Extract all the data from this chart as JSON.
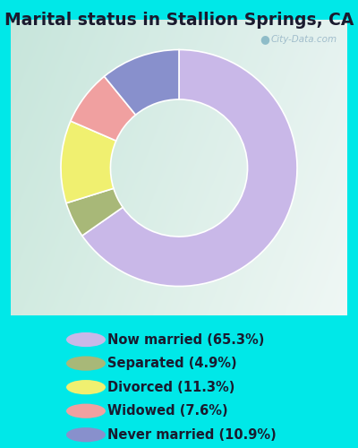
{
  "title": "Marital status in Stallion Springs, CA",
  "slices": [
    65.3,
    4.9,
    11.3,
    7.6,
    10.9
  ],
  "labels": [
    "Now married (65.3%)",
    "Separated (4.9%)",
    "Divorced (11.3%)",
    "Widowed (7.6%)",
    "Never married (10.9%)"
  ],
  "colors": [
    "#c9b8e8",
    "#a8b878",
    "#f0f070",
    "#f0a0a0",
    "#8890cc"
  ],
  "startangle": 90,
  "title_fontsize": 13.5,
  "legend_fontsize": 10.5,
  "outer_bg_color": "#00e8e8",
  "chart_bg_tl": "#d8ede0",
  "chart_bg_tr": "#e8f4f0",
  "chart_bg_br": "#f0f8f8",
  "chart_bg_bl": "#d0e8d4",
  "watermark": "City-Data.com"
}
